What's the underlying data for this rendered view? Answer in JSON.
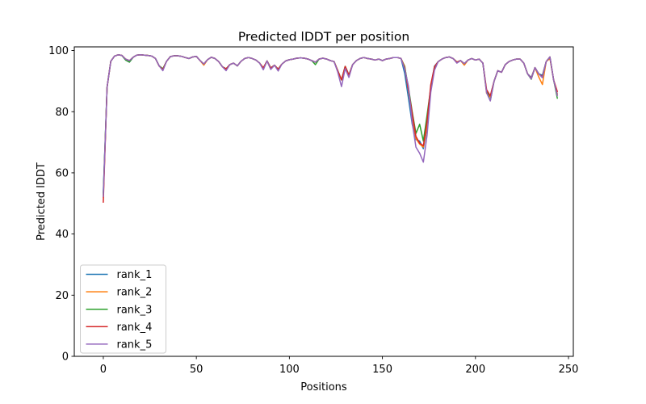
{
  "figure": {
    "background": "#ffffff",
    "axis_color": "#000000",
    "text_color": "#000000"
  },
  "chart_data": {
    "type": "line",
    "title": "Predicted lDDT per position",
    "xlabel": "Positions",
    "ylabel": "Predicted lDDT",
    "x_ticks": [
      0,
      50,
      100,
      150,
      200,
      250
    ],
    "y_ticks": [
      0,
      20,
      40,
      60,
      80,
      100
    ],
    "xlim": [
      -15.6,
      252.6
    ],
    "ylim": [
      0,
      101.2
    ],
    "grid": false,
    "legend_position": "lower left",
    "legend_border_color": "#cccccc",
    "legend_background": "rgba(255,255,255,0.8)",
    "line_width": 1.5,
    "x_start": 0,
    "x_step": 2,
    "series": [
      {
        "name": "rank_1",
        "color": "#1f77b4",
        "values": [
          53.5,
          88,
          96.5,
          98.2,
          98.6,
          98.4,
          96.9,
          96.2,
          97.8,
          98.5,
          98.6,
          98.5,
          98.4,
          98.2,
          97.4,
          95,
          94,
          96.5,
          98,
          98.3,
          98.3,
          98.1,
          97.7,
          97.4,
          97.9,
          98.1,
          96.7,
          95.6,
          97,
          97.8,
          97.4,
          96.4,
          94.7,
          94,
          95.4,
          95.9,
          95,
          96.5,
          97.4,
          97.7,
          97.4,
          96.9,
          95.9,
          94.3,
          96.6,
          94.3,
          95.2,
          93.9,
          95.6,
          96.6,
          97.0,
          97.2,
          97.5,
          97.6,
          97.5,
          97.2,
          96.7,
          96.2,
          97.2,
          97.5,
          97.2,
          96.7,
          96.4,
          93.4,
          90.4,
          94.8,
          92,
          95.4,
          96.7,
          97.4,
          97.7,
          97.4,
          97.2,
          96.9,
          97.2,
          96.7,
          97.2,
          97.4,
          97.7,
          97.7,
          97.4,
          92.5,
          84.5,
          75.9,
          70.9,
          70.4,
          67.9,
          74.9,
          88.4,
          94.9,
          96.4,
          97.2,
          97.7,
          97.9,
          97.4,
          96.2,
          96.7,
          95.7,
          96.9,
          97.4,
          96.9,
          97.2,
          95.9,
          86.5,
          85,
          89.9,
          93.4,
          92.9,
          95.4,
          96.4,
          96.9,
          97.2,
          97.2,
          95.9,
          92.4,
          91.2,
          94.4,
          92.4,
          91.9,
          96.4,
          97.9,
          90.4,
          85.8
        ]
      },
      {
        "name": "rank_2",
        "color": "#ff7f0e",
        "values": [
          52,
          88,
          96.5,
          98.2,
          98.6,
          98.4,
          97.2,
          96.7,
          97.8,
          98.5,
          98.6,
          98.5,
          98.4,
          98.2,
          97.4,
          95,
          94,
          96.5,
          98,
          98.3,
          98.3,
          98.1,
          97.7,
          97.4,
          97.9,
          98.1,
          96.7,
          95.2,
          97,
          97.8,
          97.4,
          96.4,
          94.7,
          94,
          95.4,
          95.9,
          95,
          96.5,
          97.4,
          97.7,
          97.4,
          96.9,
          95.9,
          94.3,
          96.6,
          93.9,
          95.2,
          93.9,
          95.6,
          96.6,
          97.0,
          97.2,
          97.5,
          97.6,
          97.5,
          97.2,
          96.7,
          96.2,
          97.2,
          97.5,
          97.2,
          96.7,
          96.4,
          93.4,
          90.4,
          94.8,
          92,
          95.4,
          96.7,
          97.4,
          97.7,
          97.4,
          97.2,
          96.9,
          97.2,
          96.7,
          97.2,
          97.4,
          97.7,
          97.7,
          97.4,
          94.9,
          86.9,
          78.4,
          71.2,
          69.4,
          68.4,
          75.4,
          87.4,
          94.4,
          96.4,
          97.2,
          97.7,
          97.9,
          97.4,
          96.2,
          96.7,
          95.2,
          96.9,
          97.4,
          96.9,
          97.2,
          95.9,
          86,
          84.8,
          89.9,
          93.4,
          92.9,
          95.4,
          96.4,
          96.9,
          97.2,
          97.2,
          95.9,
          92.4,
          90.9,
          94.4,
          91.4,
          88.9,
          96.4,
          97.4,
          90.4,
          85.6
        ]
      },
      {
        "name": "rank_3",
        "color": "#2ca02c",
        "values": [
          53,
          88,
          96.5,
          98.2,
          98.6,
          98.4,
          96.9,
          96.2,
          97.8,
          98.5,
          98.6,
          98.5,
          98.4,
          98.2,
          97.4,
          95,
          94,
          96.5,
          98,
          98.3,
          98.3,
          98.1,
          97.7,
          97.4,
          97.9,
          98.1,
          96.7,
          95.6,
          97,
          97.8,
          97.4,
          96.4,
          94.7,
          94,
          95.4,
          95.9,
          95,
          96.5,
          97.4,
          97.7,
          97.4,
          96.9,
          95.9,
          94.0,
          96.6,
          94.3,
          95.2,
          93.9,
          95.6,
          96.6,
          97.0,
          97.2,
          97.5,
          97.6,
          97.5,
          97.2,
          96.7,
          95.4,
          97.2,
          97.5,
          97.2,
          96.7,
          96.4,
          93.4,
          90.4,
          94.8,
          92,
          95.4,
          96.7,
          97.4,
          97.7,
          97.4,
          97.2,
          96.9,
          97.2,
          96.7,
          97.2,
          97.4,
          97.7,
          97.7,
          97.4,
          94.6,
          87.9,
          79.9,
          72.9,
          75.9,
          70.4,
          78.9,
          87.9,
          94.4,
          96.4,
          97.2,
          97.7,
          97.9,
          97.4,
          96.2,
          96.7,
          95.7,
          96.9,
          97.4,
          96.9,
          97.2,
          95.9,
          86.6,
          83.6,
          89.9,
          93.4,
          92.9,
          95.4,
          96.4,
          96.9,
          97.2,
          97.2,
          95.9,
          92.4,
          90.6,
          94.4,
          92.4,
          91.4,
          96.4,
          97.9,
          90.4,
          84.4
        ]
      },
      {
        "name": "rank_4",
        "color": "#d62728",
        "values": [
          50.4,
          88,
          96.5,
          98.2,
          98.6,
          98.4,
          97.2,
          96.7,
          97.8,
          98.5,
          98.6,
          98.5,
          98.4,
          98.2,
          97.4,
          94.9,
          93.8,
          96.5,
          98,
          98.3,
          98.3,
          98.1,
          97.7,
          97.4,
          97.9,
          98.1,
          96.7,
          95.6,
          97,
          97.8,
          97.4,
          96.4,
          94.7,
          94,
          95.4,
          95.9,
          95,
          96.5,
          97.4,
          97.7,
          97.4,
          96.9,
          95.9,
          94.3,
          96.6,
          94.3,
          95.2,
          93.9,
          95.6,
          96.6,
          97.0,
          97.2,
          97.5,
          97.6,
          97.5,
          97.2,
          96.7,
          96.2,
          97.2,
          97.5,
          97.2,
          96.7,
          96.4,
          93.4,
          90.4,
          94.8,
          92,
          95.4,
          96.7,
          97.4,
          97.7,
          97.4,
          97.2,
          96.9,
          97.2,
          96.7,
          97.2,
          97.4,
          97.7,
          97.7,
          97.4,
          94.2,
          87.2,
          79.4,
          71.9,
          69.7,
          68.9,
          76.9,
          88.9,
          94.7,
          96.4,
          97.2,
          97.7,
          97.9,
          97.4,
          96.2,
          96.7,
          95.7,
          96.9,
          97.4,
          96.9,
          97.2,
          95.9,
          87.2,
          85.2,
          89.9,
          93.4,
          92.9,
          95.4,
          96.4,
          96.9,
          97.2,
          97.2,
          95.9,
          92.4,
          90.9,
          94.4,
          92.4,
          91.4,
          96.4,
          97.9,
          90.4,
          86.6
        ]
      },
      {
        "name": "rank_5",
        "color": "#9467bd",
        "values": [
          52.2,
          88,
          96.5,
          98.2,
          98.6,
          98.4,
          97.2,
          96.7,
          97.8,
          98.5,
          98.6,
          98.5,
          98.4,
          98.2,
          97.4,
          95,
          93.4,
          96.5,
          98,
          98.3,
          98.3,
          98.1,
          97.7,
          97.4,
          97.9,
          98.1,
          96.7,
          95.6,
          97,
          97.8,
          97.4,
          96.4,
          94.7,
          93.4,
          95.4,
          95.9,
          95,
          96.5,
          97.4,
          97.7,
          97.4,
          96.9,
          95.9,
          93.7,
          96.6,
          93.8,
          95.2,
          93.3,
          95.6,
          96.6,
          97.0,
          97.2,
          97.5,
          97.6,
          97.5,
          97.2,
          96.7,
          96.2,
          97.2,
          97.5,
          97.2,
          96.7,
          96.4,
          92.9,
          88.2,
          94.1,
          91.2,
          95.4,
          96.7,
          97.4,
          97.7,
          97.4,
          97.2,
          96.9,
          97.2,
          96.7,
          97.2,
          97.4,
          97.7,
          97.7,
          97.4,
          93.9,
          88.4,
          76.4,
          68.4,
          66.4,
          63.5,
          72.4,
          86.4,
          93.6,
          96.4,
          97.2,
          97.7,
          97.9,
          97.4,
          95.9,
          96.7,
          95.7,
          96.9,
          97.4,
          96.9,
          97.2,
          95.9,
          86.2,
          83.5,
          89.9,
          93.4,
          92.9,
          95.4,
          96.4,
          96.9,
          97.2,
          97.2,
          95.9,
          92.4,
          90.7,
          94.4,
          92.4,
          91.1,
          96.4,
          97.9,
          90.4,
          85.2
        ]
      }
    ]
  }
}
